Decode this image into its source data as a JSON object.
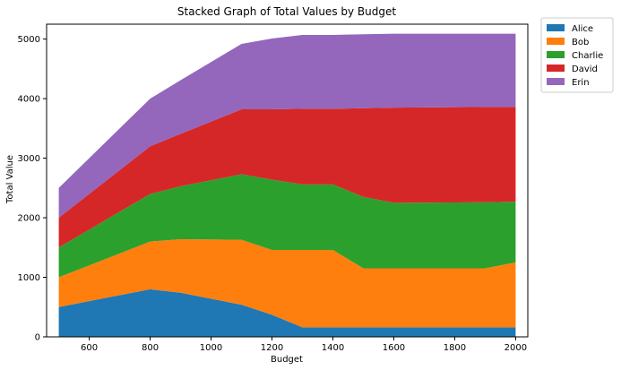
{
  "chart_data": {
    "type": "area",
    "stacked": true,
    "title": "Stacked Graph of Total Values by Budget",
    "xlabel": "Budget",
    "ylabel": "Total Value",
    "x": [
      500,
      800,
      900,
      1100,
      1200,
      1300,
      1400,
      1500,
      1600,
      1900,
      2000
    ],
    "xlim": [
      460,
      2040
    ],
    "ylim": [
      0,
      5250
    ],
    "xticks": [
      600,
      800,
      1000,
      1200,
      1400,
      1600,
      1800,
      2000
    ],
    "yticks": [
      0,
      1000,
      2000,
      3000,
      4000,
      5000
    ],
    "grid": false,
    "legend_position": "outside-top-right",
    "series": [
      {
        "name": "Alice",
        "color": "#1f77b4",
        "values": [
          500,
          800,
          740,
          540,
          370,
          160,
          160,
          160,
          160,
          160,
          160
        ]
      },
      {
        "name": "Bob",
        "color": "#ff7f0e",
        "values": [
          500,
          800,
          900,
          1090,
          1090,
          1300,
          1300,
          990,
          990,
          990,
          1090
        ]
      },
      {
        "name": "Charlie",
        "color": "#2ca02c",
        "values": [
          500,
          800,
          890,
          1100,
          1180,
          1100,
          1100,
          1200,
          1100,
          1110,
          1020
        ]
      },
      {
        "name": "David",
        "color": "#d62728",
        "values": [
          500,
          800,
          880,
          1090,
          1180,
          1270,
          1270,
          1490,
          1600,
          1600,
          1590
        ]
      },
      {
        "name": "Erin",
        "color": "#9467bd",
        "values": [
          500,
          800,
          900,
          1100,
          1190,
          1240,
          1240,
          1240,
          1240,
          1230,
          1230
        ]
      }
    ]
  }
}
